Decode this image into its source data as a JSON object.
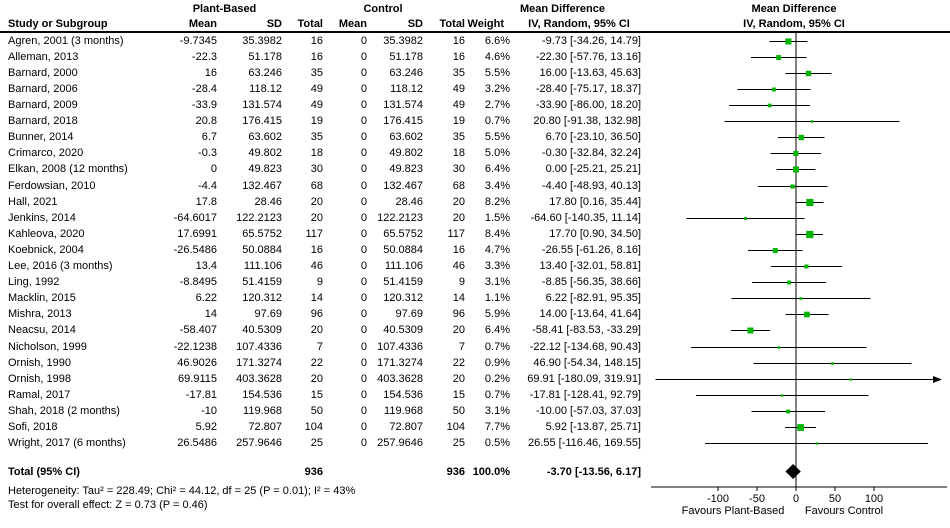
{
  "table": {
    "group_headers": {
      "plant_based": "Plant-Based",
      "control": "Control",
      "mean_difference": "Mean Difference"
    },
    "headers": {
      "study": "Study or Subgroup",
      "mean": "Mean",
      "sd": "SD",
      "total": "Total",
      "weight": "Weight",
      "ci": "IV, Random, 95% CI"
    }
  },
  "plot": {
    "header_line1": "Mean Difference",
    "header_line2": "IV, Random, 95% CI",
    "favours_left": "Favours Plant-Based",
    "favours_right": "Favours Control"
  },
  "chart_data": {
    "type": "forest",
    "effect_measure": "Mean Difference",
    "model": "IV, Random, 95% CI",
    "axis": {
      "ticks": [
        -100,
        -50,
        0,
        50,
        100
      ],
      "zero": 0,
      "xmin": -185,
      "xmax": 175,
      "grid": false
    },
    "studies": [
      {
        "label": "Agren, 2001 (3 months)",
        "mean_e": "-9.7345",
        "sd_e": "35.3982",
        "n_e": "16",
        "mean_c": "0",
        "sd_c": "35.3982",
        "n_c": "16",
        "weight": "6.6%",
        "ci_text": "-9.73 [-34.26, 14.79]",
        "est": -9.73,
        "lo": -34.26,
        "hi": 14.79,
        "w": 6.6
      },
      {
        "label": "Alleman, 2013",
        "mean_e": "-22.3",
        "sd_e": "51.178",
        "n_e": "16",
        "mean_c": "0",
        "sd_c": "51.178",
        "n_c": "16",
        "weight": "4.6%",
        "ci_text": "-22.30 [-57.76, 13.16]",
        "est": -22.3,
        "lo": -57.76,
        "hi": 13.16,
        "w": 4.6
      },
      {
        "label": "Barnard, 2000",
        "mean_e": "16",
        "sd_e": "63.246",
        "n_e": "35",
        "mean_c": "0",
        "sd_c": "63.246",
        "n_c": "35",
        "weight": "5.5%",
        "ci_text": "16.00 [-13.63, 45.63]",
        "est": 16.0,
        "lo": -13.63,
        "hi": 45.63,
        "w": 5.5
      },
      {
        "label": "Barnard, 2006",
        "mean_e": "-28.4",
        "sd_e": "118.12",
        "n_e": "49",
        "mean_c": "0",
        "sd_c": "118.12",
        "n_c": "49",
        "weight": "3.2%",
        "ci_text": "-28.40 [-75.17, 18.37]",
        "est": -28.4,
        "lo": -75.17,
        "hi": 18.37,
        "w": 3.2
      },
      {
        "label": "Barnard, 2009",
        "mean_e": "-33.9",
        "sd_e": "131.574",
        "n_e": "49",
        "mean_c": "0",
        "sd_c": "131.574",
        "n_c": "49",
        "weight": "2.7%",
        "ci_text": "-33.90 [-86.00, 18.20]",
        "est": -33.9,
        "lo": -86.0,
        "hi": 18.2,
        "w": 2.7
      },
      {
        "label": "Barnard, 2018",
        "mean_e": "20.8",
        "sd_e": "176.415",
        "n_e": "19",
        "mean_c": "0",
        "sd_c": "176.415",
        "n_c": "19",
        "weight": "0.7%",
        "ci_text": "20.80 [-91.38, 132.98]",
        "est": 20.8,
        "lo": -91.38,
        "hi": 132.98,
        "w": 0.7
      },
      {
        "label": "Bunner, 2014",
        "mean_e": "6.7",
        "sd_e": "63.602",
        "n_e": "35",
        "mean_c": "0",
        "sd_c": "63.602",
        "n_c": "35",
        "weight": "5.5%",
        "ci_text": "6.70 [-23.10, 36.50]",
        "est": 6.7,
        "lo": -23.1,
        "hi": 36.5,
        "w": 5.5
      },
      {
        "label": "Crimarco, 2020",
        "mean_e": "-0.3",
        "sd_e": "49.802",
        "n_e": "18",
        "mean_c": "0",
        "sd_c": "49.802",
        "n_c": "18",
        "weight": "5.0%",
        "ci_text": "-0.30 [-32.84, 32.24]",
        "est": -0.3,
        "lo": -32.84,
        "hi": 32.24,
        "w": 5.0
      },
      {
        "label": "Elkan, 2008 (12 months)",
        "mean_e": "0",
        "sd_e": "49.823",
        "n_e": "30",
        "mean_c": "0",
        "sd_c": "49.823",
        "n_c": "30",
        "weight": "6.4%",
        "ci_text": "0.00 [-25.21, 25.21]",
        "est": 0.0,
        "lo": -25.21,
        "hi": 25.21,
        "w": 6.4
      },
      {
        "label": "Ferdowsian, 2010",
        "mean_e": "-4.4",
        "sd_e": "132.467",
        "n_e": "68",
        "mean_c": "0",
        "sd_c": "132.467",
        "n_c": "68",
        "weight": "3.4%",
        "ci_text": "-4.40 [-48.93, 40.13]",
        "est": -4.4,
        "lo": -48.93,
        "hi": 40.13,
        "w": 3.4
      },
      {
        "label": "Hall, 2021",
        "mean_e": "17.8",
        "sd_e": "28.46",
        "n_e": "20",
        "mean_c": "0",
        "sd_c": "28.46",
        "n_c": "20",
        "weight": "8.2%",
        "ci_text": "17.80 [0.16, 35.44]",
        "est": 17.8,
        "lo": 0.16,
        "hi": 35.44,
        "w": 8.2
      },
      {
        "label": "Jenkins, 2014",
        "mean_e": "-64.6017",
        "sd_e": "122.2123",
        "n_e": "20",
        "mean_c": "0",
        "sd_c": "122.2123",
        "n_c": "20",
        "weight": "1.5%",
        "ci_text": "-64.60 [-140.35, 11.14]",
        "est": -64.6,
        "lo": -140.35,
        "hi": 11.14,
        "w": 1.5
      },
      {
        "label": "Kahleova, 2020",
        "mean_e": "17.6991",
        "sd_e": "65.5752",
        "n_e": "117",
        "mean_c": "0",
        "sd_c": "65.5752",
        "n_c": "117",
        "weight": "8.4%",
        "ci_text": "17.70 [0.90, 34.50]",
        "est": 17.7,
        "lo": 0.9,
        "hi": 34.5,
        "w": 8.4
      },
      {
        "label": "Koebnick, 2004",
        "mean_e": "-26.5486",
        "sd_e": "50.0884",
        "n_e": "16",
        "mean_c": "0",
        "sd_c": "50.0884",
        "n_c": "16",
        "weight": "4.7%",
        "ci_text": "-26.55 [-61.26, 8.16]",
        "est": -26.55,
        "lo": -61.26,
        "hi": 8.16,
        "w": 4.7
      },
      {
        "label": "Lee, 2016 (3 months)",
        "mean_e": "13.4",
        "sd_e": "111.106",
        "n_e": "46",
        "mean_c": "0",
        "sd_c": "111.106",
        "n_c": "46",
        "weight": "3.3%",
        "ci_text": "13.40 [-32.01, 58.81]",
        "est": 13.4,
        "lo": -32.01,
        "hi": 58.81,
        "w": 3.3
      },
      {
        "label": "Ling, 1992",
        "mean_e": "-8.8495",
        "sd_e": "51.4159",
        "n_e": "9",
        "mean_c": "0",
        "sd_c": "51.4159",
        "n_c": "9",
        "weight": "3.1%",
        "ci_text": "-8.85 [-56.35, 38.66]",
        "est": -8.85,
        "lo": -56.35,
        "hi": 38.66,
        "w": 3.1
      },
      {
        "label": "Macklin, 2015",
        "mean_e": "6.22",
        "sd_e": "120.312",
        "n_e": "14",
        "mean_c": "0",
        "sd_c": "120.312",
        "n_c": "14",
        "weight": "1.1%",
        "ci_text": "6.22 [-82.91, 95.35]",
        "est": 6.22,
        "lo": -82.91,
        "hi": 95.35,
        "w": 1.1
      },
      {
        "label": "Mishra, 2013",
        "mean_e": "14",
        "sd_e": "97.69",
        "n_e": "96",
        "mean_c": "0",
        "sd_c": "97.69",
        "n_c": "96",
        "weight": "5.9%",
        "ci_text": "14.00 [-13.64, 41.64]",
        "est": 14.0,
        "lo": -13.64,
        "hi": 41.64,
        "w": 5.9
      },
      {
        "label": "Neacsu, 2014",
        "mean_e": "-58.407",
        "sd_e": "40.5309",
        "n_e": "20",
        "mean_c": "0",
        "sd_c": "40.5309",
        "n_c": "20",
        "weight": "6.4%",
        "ci_text": "-58.41 [-83.53, -33.29]",
        "est": -58.41,
        "lo": -83.53,
        "hi": -33.29,
        "w": 6.4
      },
      {
        "label": "Nicholson, 1999",
        "mean_e": "-22.1238",
        "sd_e": "107.4336",
        "n_e": "7",
        "mean_c": "0",
        "sd_c": "107.4336",
        "n_c": "7",
        "weight": "0.7%",
        "ci_text": "-22.12 [-134.68, 90.43]",
        "est": -22.12,
        "lo": -134.68,
        "hi": 90.43,
        "w": 0.7
      },
      {
        "label": "Ornish, 1990",
        "mean_e": "46.9026",
        "sd_e": "171.3274",
        "n_e": "22",
        "mean_c": "0",
        "sd_c": "171.3274",
        "n_c": "22",
        "weight": "0.9%",
        "ci_text": "46.90 [-54.34, 148.15]",
        "est": 46.9,
        "lo": -54.34,
        "hi": 148.15,
        "w": 0.9
      },
      {
        "label": "Ornish, 1998",
        "mean_e": "69.9115",
        "sd_e": "403.3628",
        "n_e": "20",
        "mean_c": "0",
        "sd_c": "403.3628",
        "n_c": "20",
        "weight": "0.2%",
        "ci_text": "69.91 [-180.09, 319.91]",
        "est": 69.91,
        "lo": -180.09,
        "hi": 319.91,
        "w": 0.2
      },
      {
        "label": "Ramal, 2017",
        "mean_e": "-17.81",
        "sd_e": "154.536",
        "n_e": "15",
        "mean_c": "0",
        "sd_c": "154.536",
        "n_c": "15",
        "weight": "0.7%",
        "ci_text": "-17.81 [-128.41, 92.79]",
        "est": -17.81,
        "lo": -128.41,
        "hi": 92.79,
        "w": 0.7
      },
      {
        "label": "Shah, 2018 (2 months)",
        "mean_e": "-10",
        "sd_e": "119.968",
        "n_e": "50",
        "mean_c": "0",
        "sd_c": "119.968",
        "n_c": "50",
        "weight": "3.1%",
        "ci_text": "-10.00 [-57.03, 37.03]",
        "est": -10.0,
        "lo": -57.03,
        "hi": 37.03,
        "w": 3.1
      },
      {
        "label": "Sofi, 2018",
        "mean_e": "5.92",
        "sd_e": "72.807",
        "n_e": "104",
        "mean_c": "0",
        "sd_c": "72.807",
        "n_c": "104",
        "weight": "7.7%",
        "ci_text": "5.92 [-13.87, 25.71]",
        "est": 5.92,
        "lo": -13.87,
        "hi": 25.71,
        "w": 7.7
      },
      {
        "label": "Wright, 2017 (6 months)",
        "mean_e": "26.5486",
        "sd_e": "257.9646",
        "n_e": "25",
        "mean_c": "0",
        "sd_c": "257.9646",
        "n_c": "25",
        "weight": "0.5%",
        "ci_text": "26.55 [-116.46, 169.55]",
        "est": 26.55,
        "lo": -116.46,
        "hi": 169.55,
        "w": 0.5
      }
    ],
    "total": {
      "label": "Total (95% CI)",
      "n_e": "936",
      "n_c": "936",
      "weight": "100.0%",
      "ci_text": "-3.70 [-13.56, 6.17]",
      "est": -3.7,
      "lo": -13.56,
      "hi": 6.17
    },
    "footer": {
      "heterogeneity": "Heterogeneity: Tau² = 228.49; Chi² = 44.12, df = 25 (P = 0.01); I² = 43%",
      "overall_effect": "Test for overall effect: Z = 0.73 (P = 0.46)"
    }
  },
  "colors": {
    "marker": "#00b400",
    "diamond": "#000000",
    "line": "#000000",
    "text": "#000000",
    "background": "#ffffff"
  }
}
